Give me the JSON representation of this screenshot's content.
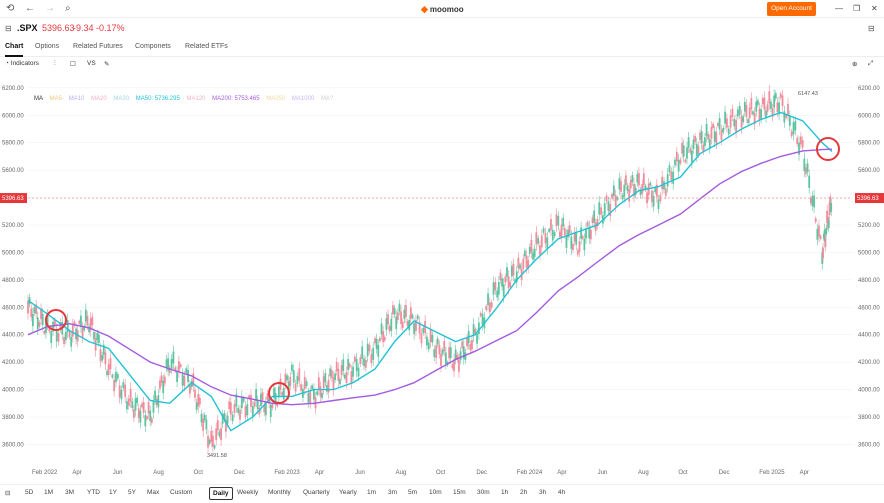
{
  "app": {
    "logo": "moomoo",
    "open_account": "Open Account"
  },
  "quote": {
    "symbol": ".SPX",
    "price": "5396.63",
    "change": "-9.34",
    "change_pct": "-0.17%"
  },
  "tabs": [
    "Chart",
    "Options",
    "Related Futures",
    "Componets",
    "Related ETFs"
  ],
  "toolbar": {
    "indicators": "Indicators",
    "vs": "VS"
  },
  "legend": {
    "ma": "MA",
    "ma5": "MA5",
    "ma10": "MA10",
    "ma20": "MA20",
    "ma30": "MA30",
    "ma50": "MA50: 5736.295",
    "ma120": "MA120",
    "ma200": "MA200: 5753.465",
    "ma250": "MA250",
    "ma1000": "MA1000",
    "ma_other": "MA?"
  },
  "price_tag": "5396.63",
  "high_label": "6147.43",
  "low_label": "3491.58",
  "chart_data": {
    "type": "line",
    "y_ticks": [
      6200,
      6000,
      5800,
      5600,
      5400,
      5200,
      5000,
      4800,
      4600,
      4400,
      4200,
      4000,
      3800,
      3600
    ],
    "y_tick_labels": [
      "6200.00",
      "6000.00",
      "5800.00",
      "5600.00",
      "5400.00",
      "5200.00",
      "5000.00",
      "4800.00",
      "4600.00",
      "4400.00",
      "4200.00",
      "4000.00",
      "3800.00",
      "3600.00"
    ],
    "ylim": [
      3450,
      6250
    ],
    "x_tick_labels": [
      "Feb 2022",
      "Apr",
      "Jun",
      "Aug",
      "Oct",
      "Dec",
      "Feb 2023",
      "Apr",
      "Jun",
      "Aug",
      "Oct",
      "Dec",
      "Feb 2024",
      "Apr",
      "Jun",
      "Aug",
      "Oct",
      "Dec",
      "Feb 2025",
      "Apr"
    ],
    "x": [
      2022.0,
      2022.08,
      2022.17,
      2022.25,
      2022.33,
      2022.42,
      2022.5,
      2022.58,
      2022.67,
      2022.75,
      2022.83,
      2022.92,
      2023.0,
      2023.08,
      2023.17,
      2023.25,
      2023.33,
      2023.42,
      2023.5,
      2023.58,
      2023.67,
      2023.75,
      2023.83,
      2023.92,
      2024.0,
      2024.08,
      2024.17,
      2024.25,
      2024.33,
      2024.42,
      2024.5,
      2024.58,
      2024.67,
      2024.75,
      2024.83,
      2024.92,
      2025.0,
      2025.08,
      2025.17,
      2025.25,
      2025.29
    ],
    "series": [
      {
        "name": "Price",
        "values": [
          4600,
          4450,
          4400,
          4500,
          4150,
          3900,
          3800,
          4200,
          4050,
          3600,
          3850,
          3900,
          3900,
          4100,
          3950,
          4100,
          4150,
          4300,
          4550,
          4500,
          4300,
          4200,
          4400,
          4750,
          4850,
          5050,
          5200,
          5050,
          5250,
          5450,
          5500,
          5400,
          5700,
          5800,
          5900,
          6000,
          6050,
          6100,
          5750,
          5000,
          5396
        ]
      },
      {
        "name": "MA50: 5736.295",
        "values": [
          4650,
          4550,
          4430,
          4350,
          4300,
          4100,
          3920,
          3900,
          4050,
          3950,
          3700,
          3800,
          3950,
          3950,
          4000,
          4000,
          4050,
          4150,
          4350,
          4500,
          4420,
          4350,
          4400,
          4600,
          4800,
          4950,
          5100,
          5150,
          5200,
          5350,
          5450,
          5480,
          5550,
          5720,
          5800,
          5900,
          5970,
          6020,
          5960,
          5800,
          5736
        ]
      },
      {
        "name": "MA200: 5753.465",
        "values": [
          4400,
          4460,
          4480,
          4450,
          4390,
          4290,
          4200,
          4150,
          4100,
          4020,
          3960,
          3930,
          3900,
          3890,
          3900,
          3920,
          3940,
          3960,
          4000,
          4050,
          4140,
          4220,
          4280,
          4360,
          4430,
          4560,
          4720,
          4820,
          4930,
          5050,
          5130,
          5200,
          5280,
          5390,
          5500,
          5590,
          5650,
          5700,
          5740,
          5750,
          5753
        ]
      }
    ]
  }
}
